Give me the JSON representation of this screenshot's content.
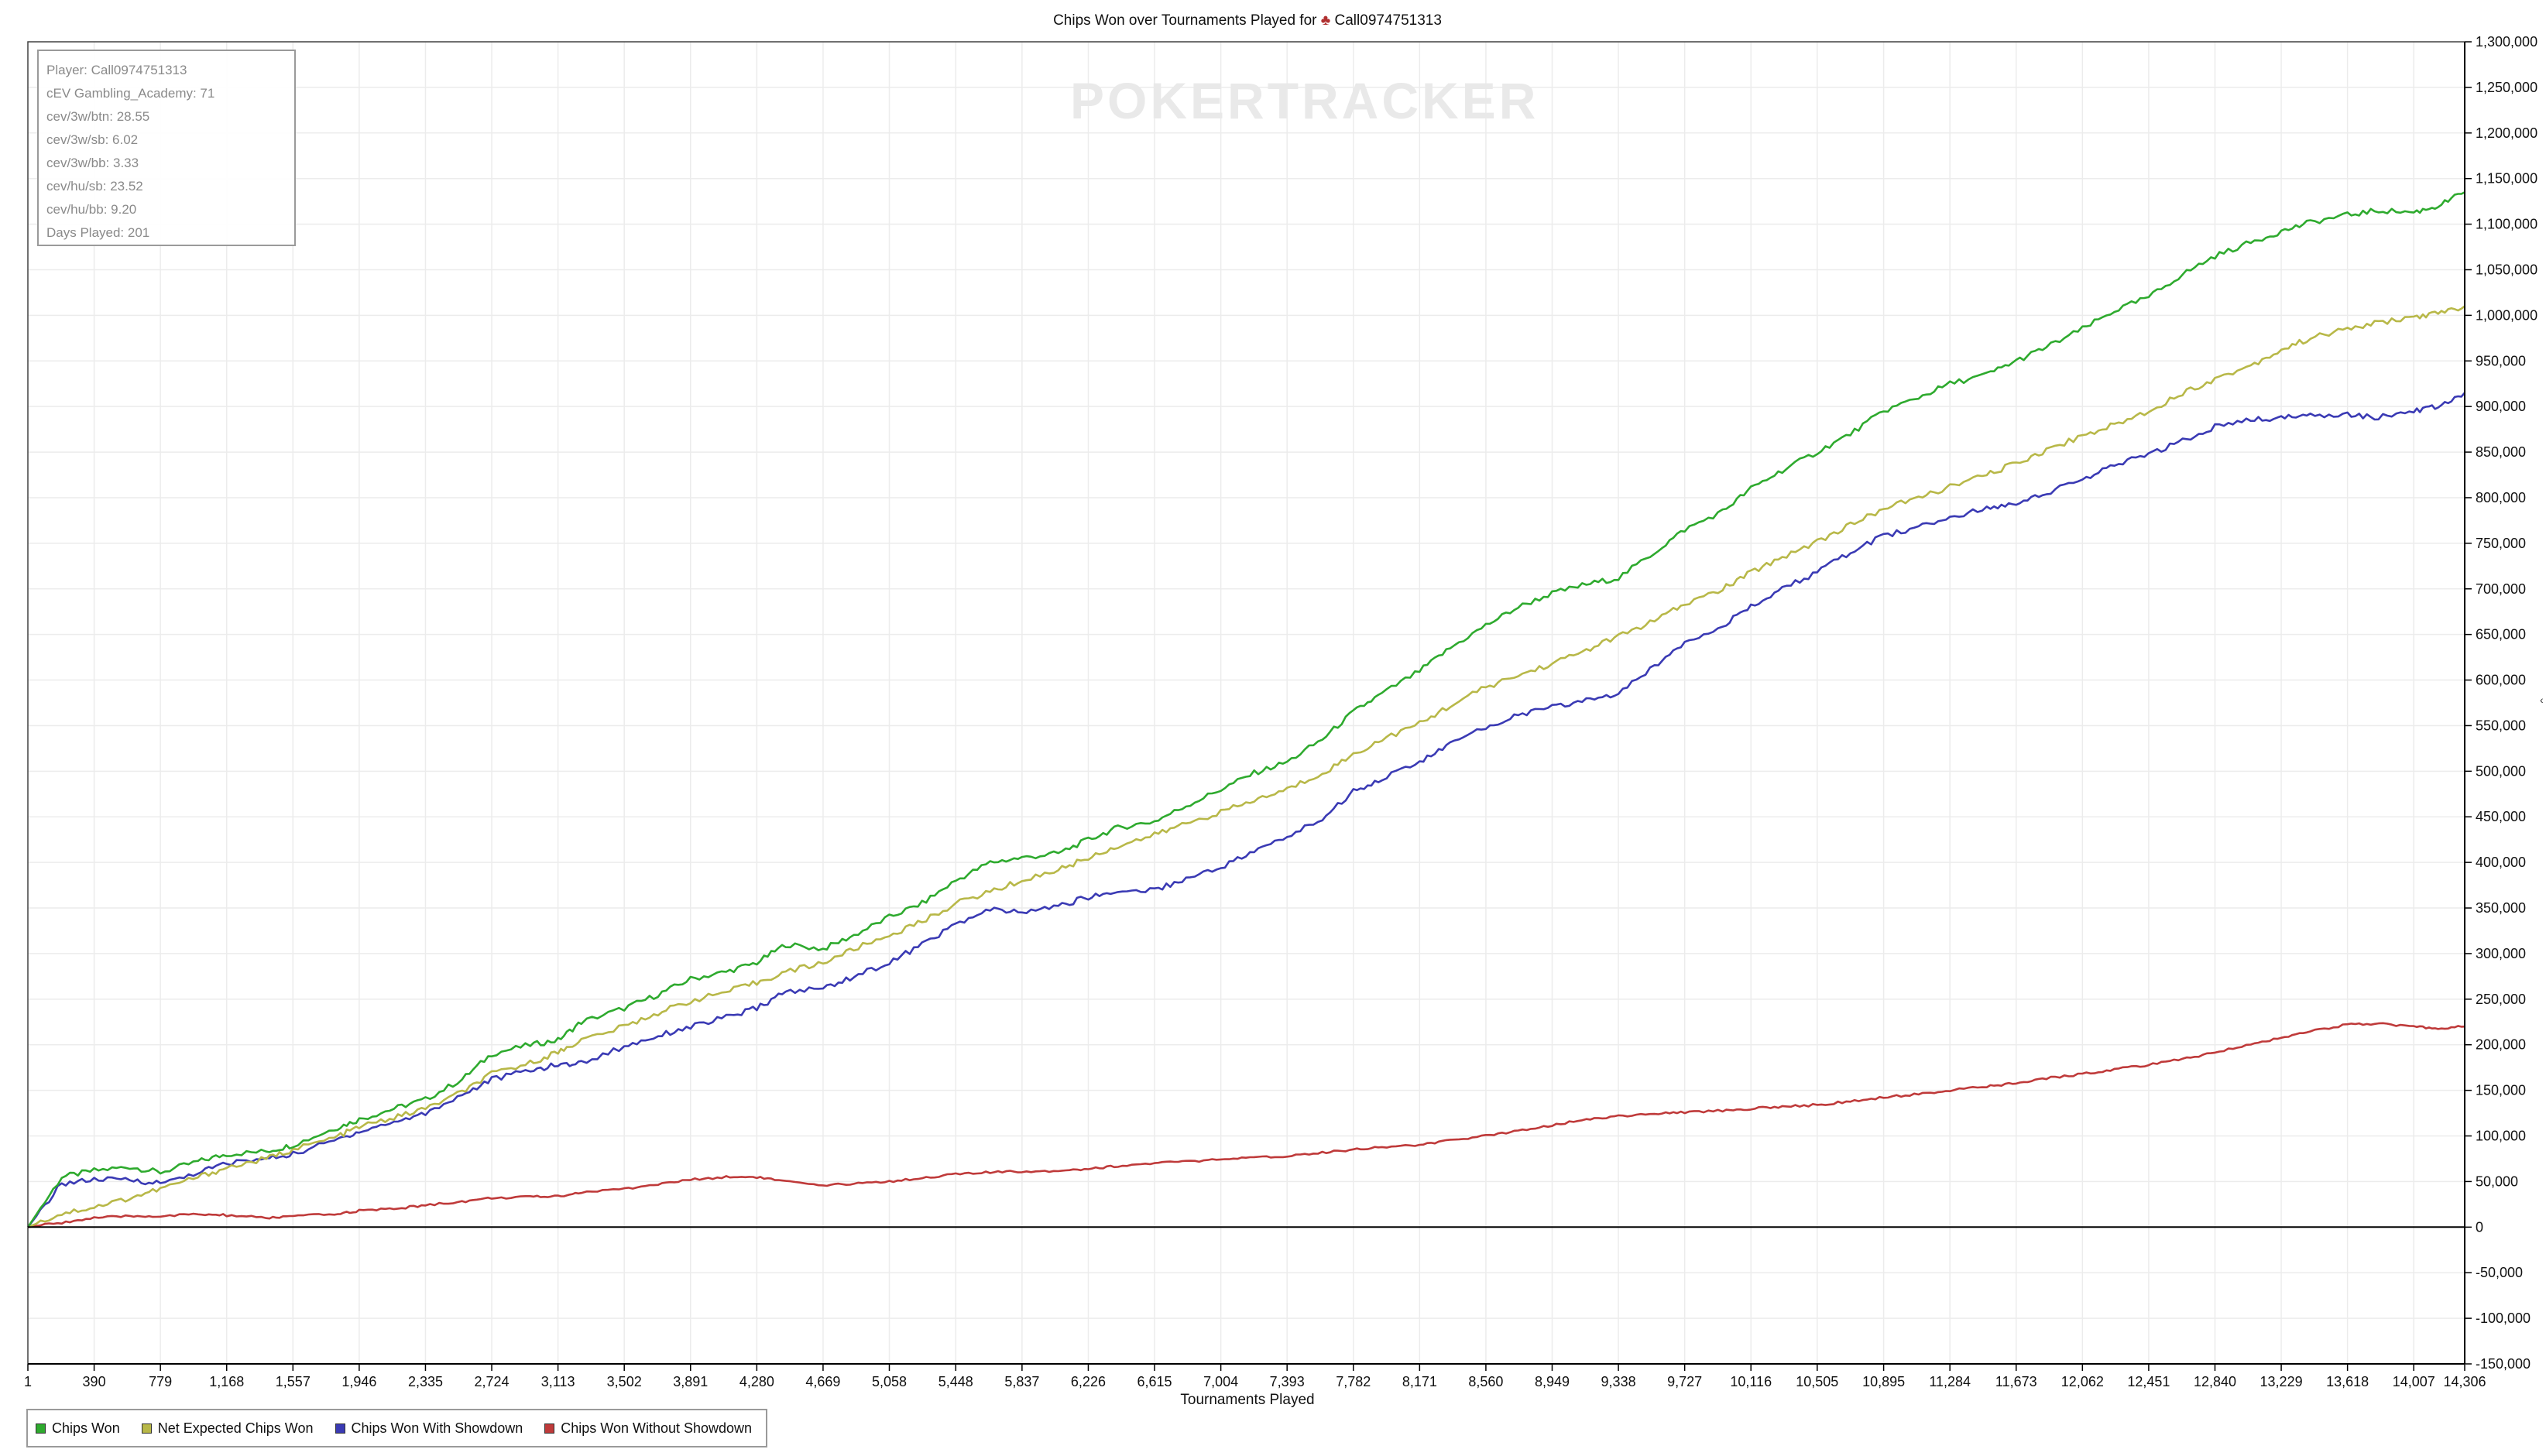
{
  "chart_data": {
    "type": "line",
    "title": "Chips Won over Tournaments Played for",
    "title_player": "Call0974751313",
    "title_icon": "poker-chip-icon",
    "xlabel": "Tournaments Played",
    "ylabel": "",
    "xlim": [
      1,
      14306
    ],
    "ylim": [
      -150000,
      1300000
    ],
    "x_ticks": [
      1,
      390,
      779,
      1168,
      1557,
      1946,
      2335,
      2724,
      3113,
      3502,
      3891,
      4280,
      4669,
      5058,
      5448,
      5837,
      6226,
      6615,
      7004,
      7393,
      7782,
      8171,
      8560,
      8949,
      9338,
      9727,
      10116,
      10505,
      10895,
      11284,
      11673,
      12062,
      12451,
      12840,
      13229,
      13618,
      14007,
      14306
    ],
    "x_tick_labels": [
      "1",
      "390",
      "779",
      "1,168",
      "1,557",
      "1,946",
      "2,335",
      "2,724",
      "3,113",
      "3,502",
      "3,891",
      "4,280",
      "4,669",
      "5,058",
      "5,448",
      "5,837",
      "6,226",
      "6,615",
      "7,004",
      "7,393",
      "7,782",
      "8,171",
      "8,560",
      "8,949",
      "9,338",
      "9,727",
      "10,116",
      "10,505",
      "10,895",
      "11,284",
      "11,673",
      "12,062",
      "12,451",
      "12,840",
      "13,229",
      "13,618",
      "14,007",
      "14,306"
    ],
    "y_ticks": [
      1300000,
      1250000,
      1200000,
      1150000,
      1100000,
      1050000,
      1000000,
      950000,
      900000,
      850000,
      800000,
      750000,
      700000,
      650000,
      600000,
      550000,
      500000,
      450000,
      400000,
      350000,
      300000,
      250000,
      200000,
      150000,
      100000,
      50000,
      0,
      -50000,
      -100000,
      -150000
    ],
    "y_tick_labels": [
      "1,300,000",
      "1,250,000",
      "1,200,000",
      "1,150,000",
      "1,100,000",
      "1,050,000",
      "1,000,000",
      "950,000",
      "900,000",
      "850,000",
      "800,000",
      "750,000",
      "700,000",
      "650,000",
      "600,000",
      "550,000",
      "500,000",
      "450,000",
      "400,000",
      "350,000",
      "300,000",
      "250,000",
      "200,000",
      "150,000",
      "100,000",
      "50,000",
      "0",
      "-50,000",
      "-100,000",
      "-150,000"
    ],
    "y_axis_side": "right",
    "grid": true,
    "legend_position": "bottom-left",
    "x": [
      1,
      200,
      390,
      600,
      779,
      1000,
      1168,
      1400,
      1557,
      1800,
      1946,
      2150,
      2335,
      2550,
      2724,
      2950,
      3113,
      3250,
      3502,
      3700,
      3891,
      4100,
      4280,
      4450,
      4669,
      4850,
      5058,
      5250,
      5448,
      5650,
      5837,
      6050,
      6226,
      6400,
      6615,
      6800,
      7004,
      7200,
      7393,
      7600,
      7782,
      7950,
      8171,
      8350,
      8560,
      8750,
      8949,
      9150,
      9338,
      9550,
      9727,
      9950,
      10116,
      10300,
      10505,
      10700,
      10895,
      11100,
      11284,
      11500,
      11673,
      11850,
      12062,
      12250,
      12451,
      12650,
      12840,
      13050,
      13229,
      13400,
      13618,
      13800,
      14007,
      14150,
      14306
    ],
    "series": [
      {
        "name": "Chips Won",
        "color": "#2eaa2e",
        "values": [
          0,
          55000,
          62000,
          66000,
          60000,
          72000,
          80000,
          83000,
          90000,
          108000,
          118000,
          130000,
          140000,
          162000,
          190000,
          200000,
          205000,
          225000,
          240000,
          255000,
          272000,
          280000,
          290000,
          310000,
          305000,
          320000,
          340000,
          355000,
          380000,
          400000,
          405000,
          410000,
          425000,
          438000,
          445000,
          462000,
          480000,
          498000,
          510000,
          535000,
          565000,
          585000,
          610000,
          635000,
          660000,
          680000,
          695000,
          705000,
          712000,
          740000,
          765000,
          785000,
          810000,
          830000,
          850000,
          870000,
          895000,
          910000,
          925000,
          935000,
          950000,
          965000,
          985000,
          1005000,
          1020000,
          1045000,
          1065000,
          1080000,
          1092000,
          1102000,
          1110000,
          1115000,
          1113000,
          1120000,
          1135000
        ]
      },
      {
        "name": "Net Expected Chips Won",
        "color": "#b8b848",
        "values": [
          0,
          15000,
          22000,
          32000,
          42000,
          55000,
          65000,
          75000,
          85000,
          98000,
          110000,
          120000,
          130000,
          148000,
          168000,
          180000,
          192000,
          205000,
          220000,
          235000,
          248000,
          258000,
          268000,
          280000,
          290000,
          305000,
          320000,
          335000,
          355000,
          368000,
          380000,
          392000,
          405000,
          418000,
          430000,
          443000,
          455000,
          468000,
          480000,
          498000,
          518000,
          535000,
          552000,
          572000,
          592000,
          605000,
          618000,
          633000,
          648000,
          665000,
          683000,
          700000,
          718000,
          735000,
          752000,
          770000,
          788000,
          800000,
          812000,
          825000,
          838000,
          852000,
          868000,
          880000,
          895000,
          915000,
          930000,
          945000,
          962000,
          975000,
          985000,
          992000,
          998000,
          1002000,
          1010000
        ]
      },
      {
        "name": "Chips Won With Showdown",
        "color": "#3a3ab4",
        "values": [
          0,
          48000,
          52000,
          52000,
          48000,
          60000,
          70000,
          75000,
          80000,
          95000,
          105000,
          115000,
          125000,
          145000,
          162000,
          172000,
          178000,
          180000,
          198000,
          210000,
          220000,
          230000,
          240000,
          258000,
          262000,
          275000,
          290000,
          310000,
          332000,
          348000,
          345000,
          352000,
          362000,
          368000,
          370000,
          382000,
          395000,
          412000,
          428000,
          448000,
          478000,
          492000,
          510000,
          530000,
          548000,
          562000,
          570000,
          578000,
          585000,
          615000,
          642000,
          660000,
          680000,
          700000,
          718000,
          740000,
          758000,
          768000,
          778000,
          788000,
          795000,
          805000,
          820000,
          835000,
          848000,
          862000,
          878000,
          885000,
          888000,
          890000,
          892000,
          888000,
          895000,
          900000,
          915000
        ]
      },
      {
        "name": "Chips Won Without Showdown",
        "color": "#bf3a3a",
        "values": [
          0,
          5000,
          10000,
          12000,
          12000,
          14000,
          13000,
          10000,
          12000,
          14000,
          18000,
          20000,
          24000,
          28000,
          32000,
          33000,
          34000,
          38000,
          42000,
          47000,
          52000,
          55000,
          55000,
          50000,
          45000,
          48000,
          50000,
          54000,
          58000,
          60000,
          61000,
          62000,
          64000,
          67000,
          70000,
          72000,
          74000,
          76000,
          78000,
          82000,
          85000,
          88000,
          90000,
          95000,
          100000,
          106000,
          112000,
          118000,
          122000,
          124000,
          126000,
          128000,
          130000,
          132000,
          134000,
          138000,
          142000,
          146000,
          150000,
          154000,
          158000,
          163000,
          168000,
          173000,
          178000,
          184000,
          192000,
          200000,
          208000,
          215000,
          222000,
          223000,
          220000,
          218000,
          220000
        ]
      }
    ]
  },
  "info_box": {
    "lines": [
      "Player: Call0974751313",
      "cEV Gambling_Academy: 71",
      "cev/3w/btn: 28.55",
      "cev/3w/sb: 6.02",
      "cev/3w/bb: 3.33",
      "cev/hu/sb: 23.52",
      "cev/hu/bb: 9.20",
      "Days Played: 201"
    ]
  },
  "watermark": {
    "text": "POKERTRACKER"
  }
}
